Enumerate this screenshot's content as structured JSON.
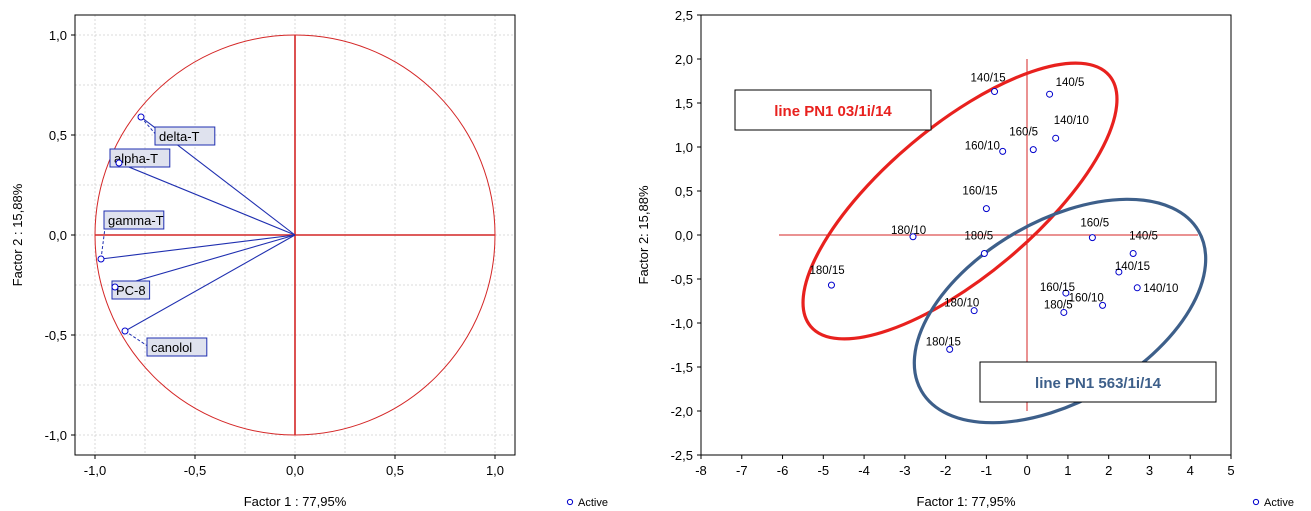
{
  "chart_data": [
    {
      "type": "scatter",
      "title": "",
      "xlabel": "Factor 1 : 77,95%",
      "ylabel": "Factor 2 : 15,88%",
      "xlim": [
        -1.1,
        1.1
      ],
      "ylim": [
        -1.1,
        1.1
      ],
      "xticks": [
        "-1,0",
        "-0,5",
        "0,0",
        "0,5",
        "1,0"
      ],
      "yticks": [
        "1,0",
        "0,5",
        "0,0",
        "-0,5",
        "-1,0"
      ],
      "xtick_values": [
        -1,
        -0.5,
        0,
        0.5,
        1
      ],
      "ytick_values": [
        1,
        0.5,
        0,
        -0.5,
        -1
      ],
      "grid": true,
      "unit_circle": true,
      "legend": "Active",
      "points": [
        {
          "label": "delta-T",
          "x": -0.77,
          "y": 0.59
        },
        {
          "label": "alpha-T",
          "x": -0.88,
          "y": 0.36
        },
        {
          "label": "gamma-T",
          "x": -0.97,
          "y": -0.12
        },
        {
          "label": "PC-8",
          "x": -0.9,
          "y": -0.26
        },
        {
          "label": "canolol",
          "x": -0.85,
          "y": -0.48
        }
      ]
    },
    {
      "type": "scatter",
      "title": "",
      "xlabel": "Factor 1: 77,95%",
      "ylabel": "Factor 2: 15,88%",
      "xlim": [
        -8,
        5
      ],
      "ylim": [
        -2.5,
        2.5
      ],
      "xticks": [
        "-8",
        "-7",
        "-6",
        "-5",
        "-4",
        "-3",
        "-2",
        "-1",
        "0",
        "1",
        "2",
        "3",
        "4",
        "5"
      ],
      "yticks": [
        "2,5",
        "2,0",
        "1,5",
        "1,0",
        "0,5",
        "0,0",
        "-0,5",
        "-1,0",
        "-1,5",
        "-2,0",
        "-2,5"
      ],
      "xtick_values": [
        -8,
        -7,
        -6,
        -5,
        -4,
        -3,
        -2,
        -1,
        0,
        1,
        2,
        3,
        4,
        5
      ],
      "ytick_values": [
        2.5,
        2,
        1.5,
        1,
        0.5,
        0,
        -0.5,
        -1,
        -1.5,
        -2,
        -2.5
      ],
      "grid": false,
      "legend": "Active",
      "groups": [
        {
          "name": "line PN1 03/1i/14",
          "color": "#e8211e"
        },
        {
          "name": "line PN1 563/1i/14",
          "color": "#3d5f8a"
        }
      ],
      "points": [
        {
          "label": "140/15",
          "x": -0.8,
          "y": 1.63
        },
        {
          "label": "140/5",
          "x": 0.55,
          "y": 1.6
        },
        {
          "label": "140/10",
          "x": 0.7,
          "y": 1.1
        },
        {
          "label": "160/5",
          "x": 0.15,
          "y": 0.97
        },
        {
          "label": "160/10",
          "x": -0.6,
          "y": 0.95
        },
        {
          "label": "160/15",
          "x": -1.0,
          "y": 0.3
        },
        {
          "label": "180/10",
          "x": -2.8,
          "y": -0.02
        },
        {
          "label": "180/5",
          "x": -1.05,
          "y": -0.21
        },
        {
          "label": "180/15",
          "x": -4.8,
          "y": -0.57
        },
        {
          "label": "160/5",
          "x": 1.6,
          "y": -0.03
        },
        {
          "label": "140/5",
          "x": 2.6,
          "y": -0.21
        },
        {
          "label": "140/15",
          "x": 2.25,
          "y": -0.42
        },
        {
          "label": "140/10",
          "x": 2.7,
          "y": -0.6
        },
        {
          "label": "160/15",
          "x": 0.95,
          "y": -0.66
        },
        {
          "label": "160/10",
          "x": 1.85,
          "y": -0.8
        },
        {
          "label": "180/5",
          "x": 0.9,
          "y": -0.88
        },
        {
          "label": "180/10",
          "x": -1.3,
          "y": -0.86
        },
        {
          "label": "180/15",
          "x": -1.9,
          "y": -1.3
        }
      ]
    }
  ]
}
